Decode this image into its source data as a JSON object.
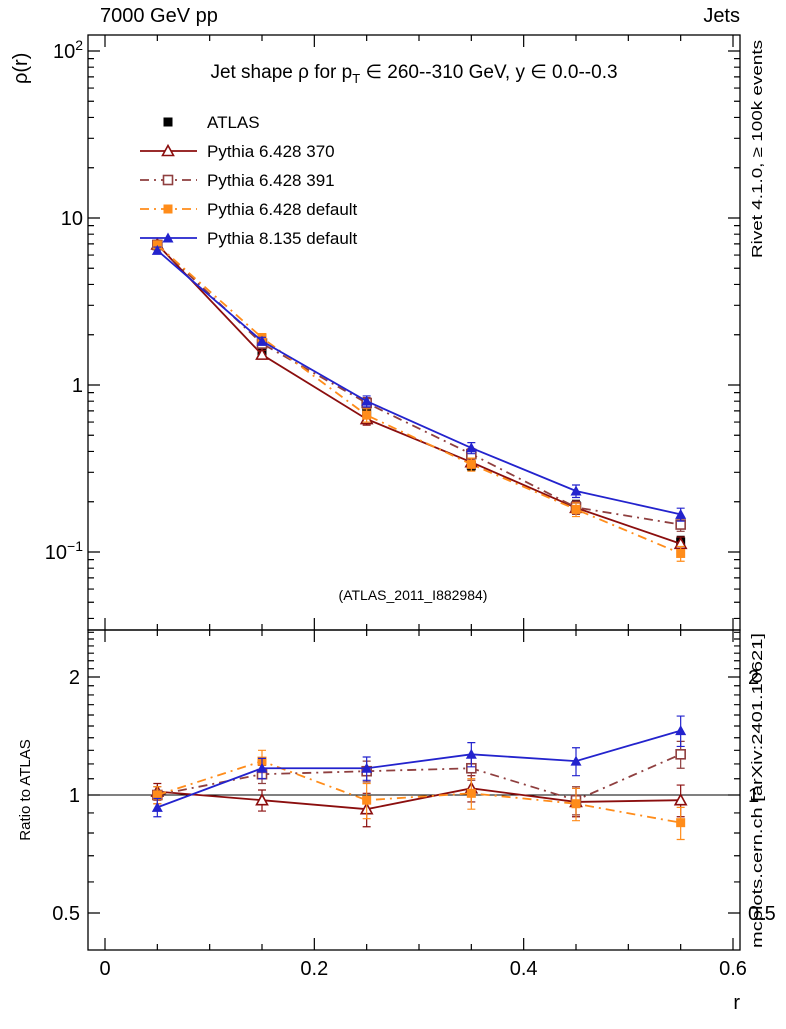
{
  "header": {
    "left": "7000 GeV pp",
    "right": "Jets"
  },
  "title": {
    "pre": "Jet shape ρ for p",
    "sub": "T",
    "post": " ∈ 260--310 GeV, y ∈ 0.0--0.3"
  },
  "watermark": "(ATLAS_2011_I882984)",
  "side_notes": {
    "top": "Rivet 4.1.0, ≥ 100k events",
    "bottom": "mcplots.cern.ch [arXiv:2401.10621]"
  },
  "axes": {
    "x_title": "r",
    "y_main_title": "ρ(r)",
    "y_ratio_title": "Ratio to ATLAS",
    "x_ticks": [
      {
        "v": 0,
        "label": "0"
      },
      {
        "v": 0.2,
        "label": "0.2"
      },
      {
        "v": 0.4,
        "label": "0.4"
      },
      {
        "v": 0.6,
        "label": "0.6"
      }
    ],
    "y_main_ticks": [
      {
        "v": 100,
        "base": "10",
        "exp": "2"
      },
      {
        "v": 10,
        "base": "10",
        "exp": ""
      },
      {
        "v": 1,
        "base": "1",
        "exp": ""
      },
      {
        "v": 0.1,
        "base": "10",
        "exp": "−1"
      }
    ],
    "y_ratio_ticks": [
      {
        "v": 2,
        "label": "2"
      },
      {
        "v": 1,
        "label": "1"
      },
      {
        "v": 0.5,
        "label": "0.5"
      }
    ]
  },
  "chart_data": {
    "type": "line",
    "title": "Jet shape ρ for pT ∈ 260--310 GeV, y ∈ 0.0--0.3",
    "xlabel": "r",
    "ylabel_main": "ρ(r)",
    "ylabel_ratio": "Ratio to ATLAS",
    "x": [
      0.05,
      0.15,
      0.25,
      0.35,
      0.45,
      0.55
    ],
    "x_range": [
      0,
      0.6
    ],
    "y_main_scale": "log",
    "y_main_range": [
      0.033,
      130
    ],
    "y_ratio_scale": "log",
    "y_ratio_range": [
      0.4,
      2.64
    ],
    "legend_position": "top-left",
    "series": [
      {
        "name": "ATLAS",
        "color": "#000000",
        "marker": "square-filled",
        "line": "none",
        "reference": true,
        "values": [
          6.9,
          1.57,
          0.68,
          0.33,
          0.19,
          0.115
        ],
        "errors": [
          0.45,
          0.1,
          0.045,
          0.022,
          0.014,
          0.009
        ]
      },
      {
        "name": "Pythia 6.428 370",
        "color": "#8b0e0e",
        "marker": "triangle-open",
        "line": "solid",
        "values": [
          6.95,
          1.52,
          0.625,
          0.345,
          0.184,
          0.112
        ],
        "errors": [
          0.3,
          0.09,
          0.05,
          0.028,
          0.016,
          0.011
        ],
        "ratio": [
          1.02,
          0.97,
          0.92,
          1.04,
          0.96,
          0.97
        ],
        "ratio_errors": [
          0.05,
          0.06,
          0.09,
          0.08,
          0.08,
          0.09
        ]
      },
      {
        "name": "Pythia 6.428 391",
        "color": "#8f3f3f",
        "marker": "square-open",
        "line": "dashdot",
        "values": [
          6.9,
          1.77,
          0.78,
          0.386,
          0.185,
          0.146
        ],
        "errors": [
          0.3,
          0.1,
          0.06,
          0.03,
          0.017,
          0.013
        ],
        "ratio": [
          1.0,
          1.13,
          1.15,
          1.17,
          0.97,
          1.27
        ],
        "ratio_errors": [
          0.05,
          0.06,
          0.07,
          0.08,
          0.08,
          0.1
        ]
      },
      {
        "name": "Pythia 6.428 default",
        "color": "#ff8c1a",
        "marker": "square-filled",
        "line": "dashdot",
        "values": [
          6.9,
          1.92,
          0.66,
          0.335,
          0.18,
          0.098
        ],
        "errors": [
          0.3,
          0.11,
          0.06,
          0.03,
          0.017,
          0.01
        ],
        "ratio": [
          1.0,
          1.22,
          0.97,
          1.01,
          0.95,
          0.85
        ],
        "ratio_errors": [
          0.05,
          0.08,
          0.1,
          0.09,
          0.09,
          0.08
        ]
      },
      {
        "name": "Pythia 8.135 default",
        "color": "#2323cd",
        "marker": "triangle-filled",
        "line": "solid",
        "values": [
          6.4,
          1.83,
          0.8,
          0.42,
          0.232,
          0.168
        ],
        "errors": [
          0.3,
          0.1,
          0.06,
          0.032,
          0.02,
          0.015
        ],
        "ratio": [
          0.93,
          1.17,
          1.17,
          1.27,
          1.22,
          1.46
        ],
        "ratio_errors": [
          0.05,
          0.07,
          0.08,
          0.09,
          0.1,
          0.13
        ]
      }
    ]
  }
}
